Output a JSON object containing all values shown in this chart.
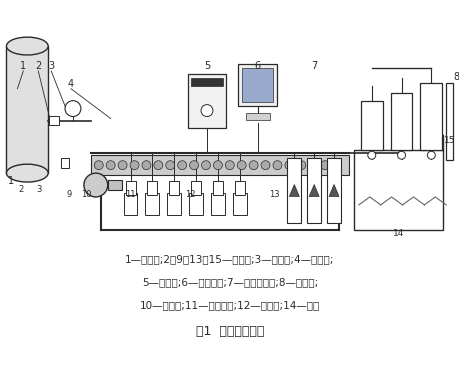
{
  "title": "图1  水表装置结构",
  "caption_line1": "1—稳压罐;2、9、13、15—开关阀;3—压力表;4—摄像头;",
  "caption_line2": "5—控制柜;6—操作电脑;7—浮子流量计;8—标准罐;",
  "caption_line3": "10—抽水泵;11—被检水表;12—操作台;14—水池",
  "bg_color": "#ffffff",
  "line_color": "#2a2a2a"
}
